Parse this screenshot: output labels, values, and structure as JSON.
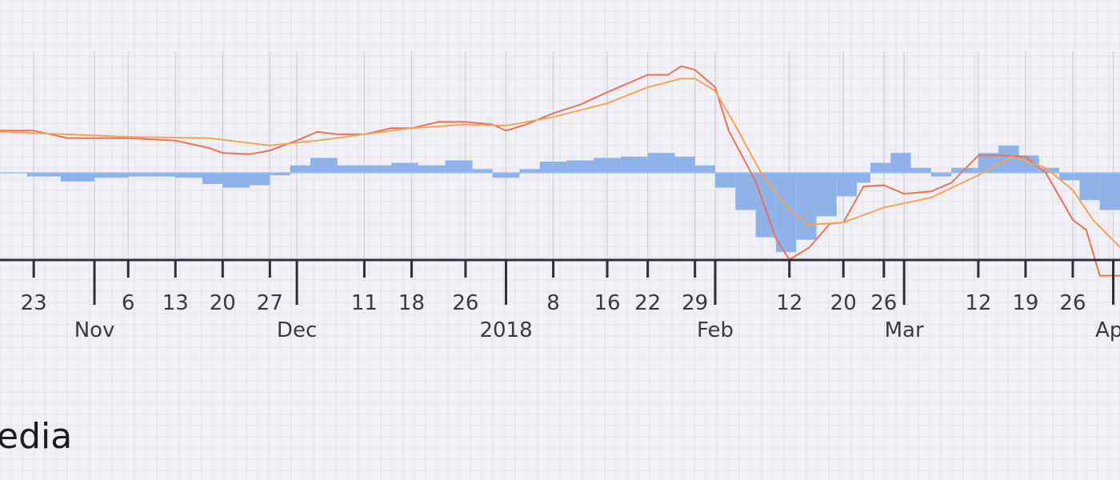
{
  "logo_text": "edia",
  "chart_data": {
    "type": "line",
    "title": "",
    "xlabel": "",
    "ylabel": "",
    "grid": true,
    "ylim": [
      -1,
      1
    ],
    "x_range": [
      "2017-10-18",
      "2018-04-02"
    ],
    "day_ticks": [
      {
        "date": "2017-10-23",
        "label": "23"
      },
      {
        "date": "2017-11-06",
        "label": "6"
      },
      {
        "date": "2017-11-13",
        "label": "13"
      },
      {
        "date": "2017-11-20",
        "label": "20"
      },
      {
        "date": "2017-11-27",
        "label": "27"
      },
      {
        "date": "2017-12-11",
        "label": "11"
      },
      {
        "date": "2017-12-18",
        "label": "18"
      },
      {
        "date": "2017-12-26",
        "label": "26"
      },
      {
        "date": "2018-01-08",
        "label": "8"
      },
      {
        "date": "2018-01-16",
        "label": "16"
      },
      {
        "date": "2018-01-22",
        "label": "22"
      },
      {
        "date": "2018-01-29",
        "label": "29"
      },
      {
        "date": "2018-02-12",
        "label": "12"
      },
      {
        "date": "2018-02-20",
        "label": "20"
      },
      {
        "date": "2018-02-26",
        "label": "26"
      },
      {
        "date": "2018-03-12",
        "label": "12"
      },
      {
        "date": "2018-03-19",
        "label": "19"
      },
      {
        "date": "2018-03-26",
        "label": "26"
      }
    ],
    "month_ticks": [
      {
        "date": "2017-11-01",
        "label": "Nov"
      },
      {
        "date": "2017-12-01",
        "label": "Dec"
      },
      {
        "date": "2018-01-01",
        "label": "2018"
      },
      {
        "date": "2018-02-01",
        "label": "Feb"
      },
      {
        "date": "2018-03-01",
        "label": "Mar"
      },
      {
        "date": "2018-04-01",
        "label": "Apr"
      }
    ],
    "series": [
      {
        "color": "#e8735a",
        "points": [
          [
            "2017-10-18",
            0.34
          ],
          [
            "2017-10-23",
            0.34
          ],
          [
            "2017-10-28",
            0.28
          ],
          [
            "2017-11-06",
            0.28
          ],
          [
            "2017-11-13",
            0.26
          ],
          [
            "2017-11-18",
            0.2
          ],
          [
            "2017-11-20",
            0.16
          ],
          [
            "2017-11-24",
            0.15
          ],
          [
            "2017-11-27",
            0.18
          ],
          [
            "2017-12-01",
            0.26
          ],
          [
            "2017-12-04",
            0.33
          ],
          [
            "2017-12-07",
            0.31
          ],
          [
            "2017-12-11",
            0.31
          ],
          [
            "2017-12-15",
            0.36
          ],
          [
            "2017-12-18",
            0.36
          ],
          [
            "2017-12-22",
            0.41
          ],
          [
            "2017-12-26",
            0.41
          ],
          [
            "2017-12-30",
            0.39
          ],
          [
            "2018-01-01",
            0.34
          ],
          [
            "2018-01-04",
            0.39
          ],
          [
            "2018-01-08",
            0.48
          ],
          [
            "2018-01-12",
            0.55
          ],
          [
            "2018-01-16",
            0.65
          ],
          [
            "2018-01-19",
            0.72
          ],
          [
            "2018-01-22",
            0.79
          ],
          [
            "2018-01-25",
            0.79
          ],
          [
            "2018-01-27",
            0.86
          ],
          [
            "2018-01-29",
            0.83
          ],
          [
            "2018-02-01",
            0.69
          ],
          [
            "2018-02-03",
            0.34
          ],
          [
            "2018-02-07",
            -0.07
          ],
          [
            "2018-02-10",
            -0.53
          ],
          [
            "2018-02-12",
            -0.7
          ],
          [
            "2018-02-15",
            -0.6
          ],
          [
            "2018-02-18",
            -0.41
          ],
          [
            "2018-02-20",
            -0.4
          ],
          [
            "2018-02-23",
            -0.11
          ],
          [
            "2018-02-26",
            -0.1
          ],
          [
            "2018-03-01",
            -0.17
          ],
          [
            "2018-03-05",
            -0.15
          ],
          [
            "2018-03-08",
            -0.08
          ],
          [
            "2018-03-12",
            0.14
          ],
          [
            "2018-03-15",
            0.14
          ],
          [
            "2018-03-19",
            0.13
          ],
          [
            "2018-03-22",
            0.0
          ],
          [
            "2018-03-26",
            -0.38
          ],
          [
            "2018-03-28",
            -0.46
          ],
          [
            "2018-03-30",
            -0.83
          ],
          [
            "2018-04-02",
            -0.83
          ]
        ]
      },
      {
        "color": "#f2a65a",
        "points": [
          [
            "2017-10-18",
            0.33
          ],
          [
            "2017-10-28",
            0.31
          ],
          [
            "2017-11-06",
            0.29
          ],
          [
            "2017-11-18",
            0.28
          ],
          [
            "2017-11-27",
            0.22
          ],
          [
            "2017-12-04",
            0.26
          ],
          [
            "2017-12-11",
            0.31
          ],
          [
            "2017-12-18",
            0.36
          ],
          [
            "2017-12-26",
            0.39
          ],
          [
            "2018-01-01",
            0.38
          ],
          [
            "2018-01-08",
            0.45
          ],
          [
            "2018-01-16",
            0.56
          ],
          [
            "2018-01-22",
            0.69
          ],
          [
            "2018-01-27",
            0.76
          ],
          [
            "2018-01-29",
            0.76
          ],
          [
            "2018-02-01",
            0.66
          ],
          [
            "2018-02-04",
            0.38
          ],
          [
            "2018-02-08",
            -0.02
          ],
          [
            "2018-02-12",
            -0.3
          ],
          [
            "2018-02-15",
            -0.42
          ],
          [
            "2018-02-20",
            -0.4
          ],
          [
            "2018-02-26",
            -0.28
          ],
          [
            "2018-03-05",
            -0.2
          ],
          [
            "2018-03-12",
            -0.02
          ],
          [
            "2018-03-17",
            0.13
          ],
          [
            "2018-03-22",
            0.04
          ],
          [
            "2018-03-26",
            -0.14
          ],
          [
            "2018-03-29",
            -0.38
          ],
          [
            "2018-04-02",
            -0.6
          ]
        ]
      }
    ],
    "histogram": {
      "color": "#8fb2e8",
      "bars": [
        [
          "2017-10-18",
          0.0
        ],
        [
          "2017-10-22",
          -0.03
        ],
        [
          "2017-10-27",
          -0.07
        ],
        [
          "2017-11-01",
          -0.04
        ],
        [
          "2017-11-06",
          -0.03
        ],
        [
          "2017-11-13",
          -0.04
        ],
        [
          "2017-11-17",
          -0.09
        ],
        [
          "2017-11-20",
          -0.12
        ],
        [
          "2017-11-24",
          -0.1
        ],
        [
          "2017-11-27",
          -0.02
        ],
        [
          "2017-11-30",
          0.06
        ],
        [
          "2017-12-03",
          0.12
        ],
        [
          "2017-12-07",
          0.06
        ],
        [
          "2017-12-11",
          0.06
        ],
        [
          "2017-12-15",
          0.08
        ],
        [
          "2017-12-19",
          0.06
        ],
        [
          "2017-12-23",
          0.1
        ],
        [
          "2017-12-27",
          0.03
        ],
        [
          "2017-12-30",
          -0.04
        ],
        [
          "2018-01-03",
          0.03
        ],
        [
          "2018-01-06",
          0.09
        ],
        [
          "2018-01-10",
          0.1
        ],
        [
          "2018-01-14",
          0.12
        ],
        [
          "2018-01-18",
          0.13
        ],
        [
          "2018-01-22",
          0.16
        ],
        [
          "2018-01-26",
          0.13
        ],
        [
          "2018-01-29",
          0.06
        ],
        [
          "2018-02-01",
          -0.12
        ],
        [
          "2018-02-04",
          -0.3
        ],
        [
          "2018-02-07",
          -0.52
        ],
        [
          "2018-02-10",
          -0.64
        ],
        [
          "2018-02-13",
          -0.54
        ],
        [
          "2018-02-16",
          -0.35
        ],
        [
          "2018-02-19",
          -0.19
        ],
        [
          "2018-02-22",
          -0.08
        ],
        [
          "2018-02-24",
          0.08
        ],
        [
          "2018-02-27",
          0.16
        ],
        [
          "2018-03-02",
          0.04
        ],
        [
          "2018-03-05",
          -0.03
        ],
        [
          "2018-03-08",
          0.04
        ],
        [
          "2018-03-12",
          0.16
        ],
        [
          "2018-03-15",
          0.22
        ],
        [
          "2018-03-18",
          0.14
        ],
        [
          "2018-03-21",
          0.04
        ],
        [
          "2018-03-24",
          -0.06
        ],
        [
          "2018-03-27",
          -0.22
        ],
        [
          "2018-03-30",
          -0.3
        ],
        [
          "2018-04-02",
          -0.24
        ]
      ]
    }
  }
}
